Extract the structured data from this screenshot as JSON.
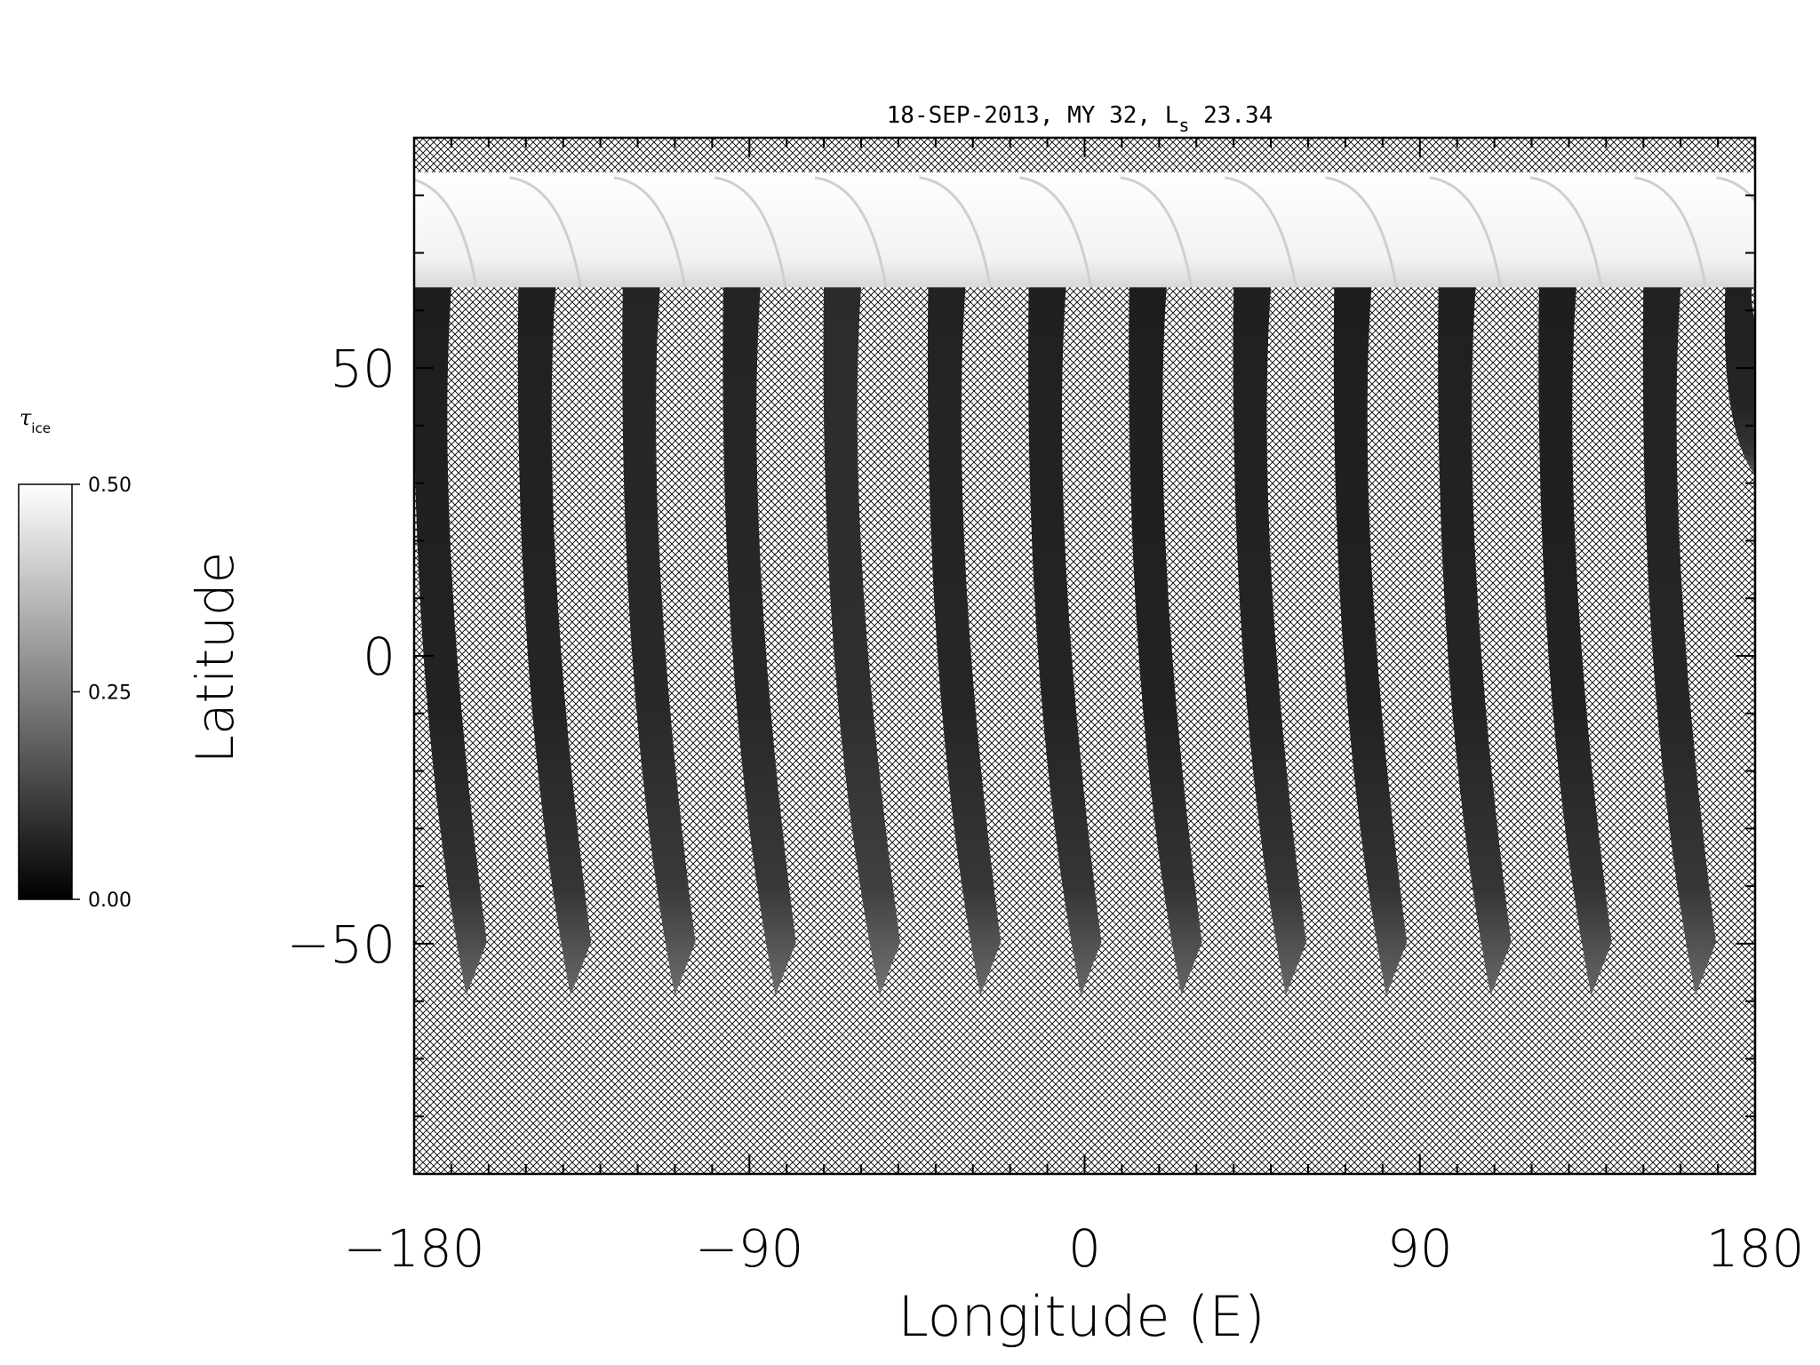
{
  "chart_data": {
    "type": "heatmap",
    "title": "18-SEP-2013, MY 32,  L",
    "title_sub": "s",
    "title_tail": " 23.34",
    "xlabel": "Longitude (E)",
    "ylabel": "Latitude",
    "xlim": [
      -180,
      180
    ],
    "ylim": [
      -90,
      90
    ],
    "xticks": [
      -180,
      -90,
      0,
      90,
      180
    ],
    "xtick_labels": [
      "−180",
      "−90",
      "0",
      "90",
      "180"
    ],
    "yticks": [
      -50,
      0,
      50
    ],
    "ytick_labels": [
      "−50",
      "0",
      "50"
    ],
    "x_minor_step": 10,
    "y_minor_step": 10,
    "missing_data_pattern": "crosshatch",
    "colorbar": {
      "label": "τ",
      "label_sub": "ice",
      "range": [
        0.0,
        0.5
      ],
      "tick_values": [
        0.0,
        0.25,
        0.5
      ],
      "tick_labels": [
        "0.00",
        "0.25",
        "0.50"
      ],
      "colormap": "grayscale"
    },
    "polar_cap": {
      "lat_min": 64,
      "lat_max": 84,
      "value": 0.48
    },
    "swaths": [
      {
        "lon_north": -180,
        "lon_south": -168,
        "width": 10,
        "top": 64,
        "bottom": -59,
        "value": 0.08
      },
      {
        "lon_north": -152,
        "lon_south": -140,
        "width": 10,
        "top": 64,
        "bottom": -59,
        "value": 0.09
      },
      {
        "lon_north": -124,
        "lon_south": -112,
        "width": 10,
        "top": 64,
        "bottom": -59,
        "value": 0.12
      },
      {
        "lon_north": -97,
        "lon_south": -85,
        "width": 10,
        "top": 64,
        "bottom": -59,
        "value": 0.11
      },
      {
        "lon_north": -70,
        "lon_south": -57,
        "width": 10,
        "top": 64,
        "bottom": -59,
        "value": 0.15
      },
      {
        "lon_north": -42,
        "lon_south": -30,
        "width": 10,
        "top": 64,
        "bottom": -59,
        "value": 0.1
      },
      {
        "lon_north": -15,
        "lon_south": -3,
        "width": 10,
        "top": 64,
        "bottom": -59,
        "value": 0.09
      },
      {
        "lon_north": 12,
        "lon_south": 24,
        "width": 10,
        "top": 64,
        "bottom": -59,
        "value": 0.08
      },
      {
        "lon_north": 40,
        "lon_south": 52,
        "width": 10,
        "top": 64,
        "bottom": -59,
        "value": 0.09
      },
      {
        "lon_north": 67,
        "lon_south": 79,
        "width": 10,
        "top": 64,
        "bottom": -59,
        "value": 0.08
      },
      {
        "lon_north": 95,
        "lon_south": 107,
        "width": 10,
        "top": 64,
        "bottom": -59,
        "value": 0.09
      },
      {
        "lon_north": 122,
        "lon_south": 134,
        "width": 10,
        "top": 64,
        "bottom": -59,
        "value": 0.08
      },
      {
        "lon_north": 150,
        "lon_south": 162,
        "width": 10,
        "top": 64,
        "bottom": -59,
        "value": 0.1
      },
      {
        "lon_north": 172,
        "lon_south": 180,
        "width": 8,
        "top": 64,
        "bottom": 30,
        "value": 0.09
      }
    ],
    "grid": false
  }
}
